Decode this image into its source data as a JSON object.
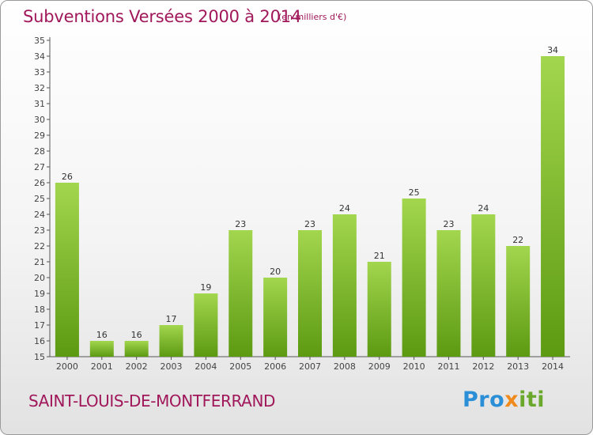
{
  "header": {
    "title": "Subventions Versées 2000 à 2014",
    "unit": "(en milliers d'€)"
  },
  "footer": {
    "place": "SAINT-LOUIS-DE-MONTFERRAND",
    "logo_parts": [
      "Pro",
      "x",
      "iti"
    ]
  },
  "colors": {
    "title": "#a0185a",
    "bar_top": "#a2d64e",
    "bar_bottom": "#5c9a12",
    "logo_blue": "#2a8fd6",
    "logo_orange": "#f08a1c"
  },
  "chart_data": {
    "type": "bar",
    "title": "Subventions Versées 2000 à 2014",
    "categories": [
      "2000",
      "2001",
      "2002",
      "2003",
      "2004",
      "2005",
      "2006",
      "2007",
      "2008",
      "2009",
      "2010",
      "2011",
      "2012",
      "2013",
      "2014"
    ],
    "values": [
      26,
      16,
      16,
      17,
      19,
      23,
      20,
      23,
      24,
      21,
      25,
      23,
      24,
      22,
      34
    ],
    "ylim": [
      15,
      35
    ],
    "ytick_step": 1,
    "grid": false
  }
}
